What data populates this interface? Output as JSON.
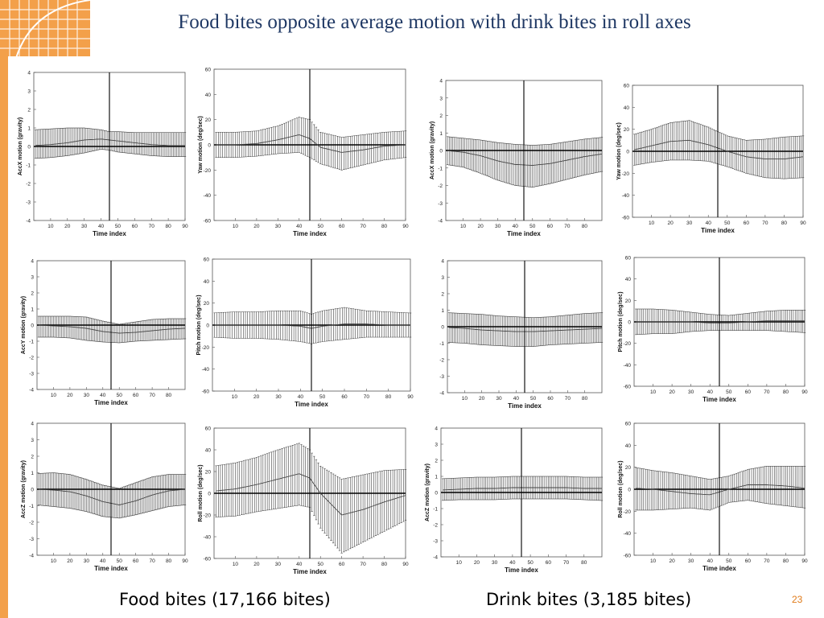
{
  "slide": {
    "title": "Food bites opposite average motion with drink bites in roll axes",
    "footer_left": "Food bites (17,166 bites)",
    "footer_right": "Drink bites (3,185 bites)",
    "page_number": "23",
    "accent_color": "#f3a04a",
    "title_color": "#1f3864"
  },
  "chart_data": [
    {
      "type": "line",
      "group": "Food bites",
      "xlabel": "Time index",
      "ylabel": "AccX motion (gravity)",
      "xlim": [
        0,
        90
      ],
      "ylim": [
        -4,
        4
      ],
      "yticks": [
        -4,
        -3,
        -2,
        -1,
        0,
        1,
        2,
        3,
        4
      ],
      "xticks": [
        10,
        20,
        30,
        40,
        50,
        60,
        70,
        80,
        90
      ],
      "marker_x": 45,
      "series": [
        {
          "x": [
            0,
            10,
            20,
            30,
            40,
            45,
            50,
            60,
            70,
            80,
            90
          ],
          "mean": [
            0.05,
            0.1,
            0.2,
            0.35,
            0.4,
            0.35,
            0.3,
            0.2,
            0.1,
            0.05,
            0.05
          ],
          "upper": [
            0.9,
            0.95,
            1.0,
            1.0,
            0.9,
            0.8,
            0.8,
            0.75,
            0.75,
            0.75,
            0.75
          ],
          "lower": [
            -0.65,
            -0.6,
            -0.5,
            -0.35,
            -0.15,
            -0.2,
            -0.3,
            -0.4,
            -0.5,
            -0.55,
            -0.55
          ]
        }
      ]
    },
    {
      "type": "line",
      "group": "Food bites",
      "xlabel": "Time index",
      "ylabel": "Yaw motion (deg/sec)",
      "xlim": [
        0,
        90
      ],
      "ylim": [
        -60,
        60
      ],
      "yticks": [
        -60,
        -40,
        -20,
        0,
        20,
        40,
        60
      ],
      "xticks": [
        10,
        20,
        30,
        40,
        50,
        60,
        70,
        80,
        90
      ],
      "marker_x": 45,
      "series": [
        {
          "x": [
            0,
            10,
            20,
            30,
            40,
            45,
            50,
            60,
            70,
            80,
            90
          ],
          "mean": [
            0,
            0,
            1,
            4,
            8,
            5,
            -2,
            -6,
            -4,
            -1,
            0
          ],
          "upper": [
            10,
            10,
            11,
            15,
            22,
            20,
            10,
            6,
            8,
            10,
            11
          ],
          "lower": [
            -10,
            -10,
            -9,
            -7,
            -6,
            -10,
            -15,
            -20,
            -16,
            -12,
            -10
          ]
        }
      ]
    },
    {
      "type": "line",
      "group": "Drink bites",
      "xlabel": "Time index",
      "ylabel": "AccX motion (gravity)",
      "xlim": [
        0,
        90
      ],
      "ylim": [
        -4,
        4
      ],
      "yticks": [
        -4,
        -3,
        -2,
        -1,
        0,
        1,
        2,
        3,
        4
      ],
      "xticks": [
        10,
        20,
        30,
        40,
        50,
        60,
        70,
        80
      ],
      "marker_x": 45,
      "series": [
        {
          "x": [
            0,
            10,
            20,
            30,
            40,
            50,
            60,
            70,
            80,
            90
          ],
          "mean": [
            0,
            -0.1,
            -0.3,
            -0.6,
            -0.8,
            -0.85,
            -0.75,
            -0.55,
            -0.35,
            -0.2
          ],
          "upper": [
            0.8,
            0.7,
            0.6,
            0.45,
            0.35,
            0.3,
            0.35,
            0.5,
            0.65,
            0.75
          ],
          "lower": [
            -0.8,
            -0.95,
            -1.3,
            -1.7,
            -2.0,
            -2.1,
            -1.9,
            -1.65,
            -1.4,
            -1.2
          ]
        }
      ]
    },
    {
      "type": "line",
      "group": "Drink bites",
      "xlabel": "Time index",
      "ylabel": "Yaw motion (deg/sec)",
      "xlim": [
        0,
        90
      ],
      "ylim": [
        -60,
        60
      ],
      "yticks": [
        -60,
        -40,
        -20,
        0,
        20,
        40,
        60
      ],
      "xticks": [
        10,
        20,
        30,
        40,
        50,
        60,
        70,
        80,
        90
      ],
      "marker_x": 45,
      "series": [
        {
          "x": [
            0,
            10,
            20,
            30,
            40,
            50,
            60,
            70,
            80,
            90
          ],
          "mean": [
            1,
            5,
            9,
            10,
            6,
            0,
            -5,
            -7,
            -7,
            -5
          ],
          "upper": [
            15,
            20,
            26,
            28,
            22,
            14,
            10,
            11,
            13,
            14
          ],
          "lower": [
            -13,
            -10,
            -8,
            -8,
            -9,
            -14,
            -20,
            -24,
            -25,
            -24
          ]
        }
      ]
    },
    {
      "type": "line",
      "group": "Food bites",
      "xlabel": "Time index",
      "ylabel": "AccY motion (gravity)",
      "xlim": [
        0,
        90
      ],
      "ylim": [
        -4,
        4
      ],
      "yticks": [
        -4,
        -3,
        -2,
        -1,
        0,
        1,
        2,
        3,
        4
      ],
      "xticks": [
        10,
        20,
        30,
        40,
        50,
        60,
        70,
        80
      ],
      "marker_x": 45,
      "series": [
        {
          "x": [
            0,
            10,
            20,
            30,
            40,
            50,
            60,
            70,
            80,
            90
          ],
          "mean": [
            0,
            -0.05,
            -0.1,
            -0.2,
            -0.4,
            -0.5,
            -0.45,
            -0.35,
            -0.25,
            -0.2
          ],
          "upper": [
            0.55,
            0.55,
            0.55,
            0.5,
            0.25,
            0.05,
            0.2,
            0.35,
            0.4,
            0.4
          ],
          "lower": [
            -0.75,
            -0.75,
            -0.8,
            -0.95,
            -1.05,
            -1.1,
            -1.0,
            -0.95,
            -0.9,
            -0.85
          ]
        }
      ]
    },
    {
      "type": "line",
      "group": "Food bites",
      "xlabel": "Time index",
      "ylabel": "Pitch motion (deg/sec)",
      "xlim": [
        0,
        90
      ],
      "ylim": [
        -60,
        60
      ],
      "yticks": [
        -60,
        -40,
        -20,
        0,
        20,
        40,
        60
      ],
      "xticks": [
        10,
        20,
        30,
        40,
        50,
        60,
        70,
        80,
        90
      ],
      "marker_x": 45,
      "series": [
        {
          "x": [
            0,
            10,
            20,
            30,
            40,
            45,
            50,
            60,
            70,
            80,
            90
          ],
          "mean": [
            0,
            0,
            0,
            0,
            -1,
            -3,
            -1,
            1,
            1,
            0,
            0
          ],
          "upper": [
            11,
            12,
            12,
            13,
            13,
            10,
            13,
            16,
            13,
            12,
            11
          ],
          "lower": [
            -11,
            -12,
            -12,
            -13,
            -15,
            -17,
            -15,
            -13,
            -11,
            -11,
            -11
          ]
        }
      ]
    },
    {
      "type": "line",
      "group": "Drink bites",
      "xlabel": "Time index",
      "ylabel": "",
      "xlim": [
        0,
        90
      ],
      "ylim": [
        -4,
        4
      ],
      "yticks": [
        -4,
        -3,
        -2,
        -1,
        0,
        1,
        2,
        3,
        4
      ],
      "xticks": [
        10,
        20,
        30,
        40,
        50,
        60,
        70,
        80
      ],
      "marker_x": 45,
      "series": [
        {
          "x": [
            0,
            10,
            20,
            30,
            40,
            50,
            60,
            70,
            80,
            90
          ],
          "mean": [
            -0.05,
            -0.1,
            -0.2,
            -0.25,
            -0.3,
            -0.3,
            -0.25,
            -0.2,
            -0.15,
            -0.1
          ],
          "upper": [
            0.85,
            0.8,
            0.75,
            0.65,
            0.6,
            0.55,
            0.6,
            0.7,
            0.8,
            0.85
          ],
          "lower": [
            -0.95,
            -1.0,
            -1.1,
            -1.15,
            -1.2,
            -1.2,
            -1.1,
            -1.05,
            -1.0,
            -0.95
          ]
        }
      ]
    },
    {
      "type": "line",
      "group": "Drink bites",
      "xlabel": "Time index",
      "ylabel": "Pitch motion (deg/sec)",
      "xlim": [
        0,
        90
      ],
      "ylim": [
        -60,
        60
      ],
      "yticks": [
        -60,
        -40,
        -20,
        0,
        20,
        40,
        60
      ],
      "xticks": [
        10,
        20,
        30,
        40,
        50,
        60,
        70,
        80,
        90
      ],
      "marker_x": 45,
      "series": [
        {
          "x": [
            0,
            10,
            20,
            30,
            40,
            50,
            60,
            70,
            80,
            90
          ],
          "mean": [
            0,
            0,
            0,
            0,
            -1,
            -1,
            0,
            1,
            1,
            1
          ],
          "upper": [
            12,
            12,
            11,
            9,
            7,
            6,
            8,
            10,
            11,
            11
          ],
          "lower": [
            -12,
            -11,
            -11,
            -9,
            -8,
            -8,
            -8,
            -8,
            -9,
            -10
          ]
        }
      ]
    },
    {
      "type": "line",
      "group": "Food bites",
      "xlabel": "Time index",
      "ylabel": "AccZ motion (gravity)",
      "xlim": [
        0,
        90
      ],
      "ylim": [
        -4,
        4
      ],
      "yticks": [
        -4,
        -3,
        -2,
        -1,
        0,
        1,
        2,
        3,
        4
      ],
      "xticks": [
        10,
        20,
        30,
        40,
        50,
        60,
        70,
        80,
        90
      ],
      "marker_x": 45,
      "series": [
        {
          "x": [
            0,
            10,
            20,
            30,
            40,
            50,
            60,
            70,
            80,
            90
          ],
          "mean": [
            0,
            -0.05,
            -0.15,
            -0.4,
            -0.75,
            -0.95,
            -0.7,
            -0.35,
            -0.1,
            0
          ],
          "upper": [
            0.95,
            1.0,
            0.9,
            0.6,
            0.25,
            0.05,
            0.4,
            0.75,
            0.9,
            0.9
          ],
          "lower": [
            -0.95,
            -1.05,
            -1.15,
            -1.35,
            -1.65,
            -1.75,
            -1.55,
            -1.3,
            -1.05,
            -0.95
          ]
        }
      ]
    },
    {
      "type": "line",
      "group": "Food bites",
      "xlabel": "Time index",
      "ylabel": "Roll motion (deg/sec)",
      "xlim": [
        0,
        90
      ],
      "ylim": [
        -60,
        60
      ],
      "yticks": [
        -60,
        -40,
        -20,
        0,
        20,
        40,
        60
      ],
      "xticks": [
        10,
        20,
        30,
        40,
        50,
        60,
        70,
        80,
        90
      ],
      "marker_x": 45,
      "series": [
        {
          "x": [
            0,
            10,
            20,
            30,
            40,
            45,
            50,
            60,
            70,
            80,
            90
          ],
          "mean": [
            2,
            4,
            8,
            13,
            18,
            14,
            0,
            -20,
            -15,
            -8,
            -2
          ],
          "upper": [
            25,
            28,
            33,
            40,
            46,
            40,
            25,
            13,
            17,
            21,
            22
          ],
          "lower": [
            -22,
            -21,
            -17,
            -14,
            -11,
            -13,
            -32,
            -55,
            -45,
            -35,
            -25
          ]
        }
      ]
    },
    {
      "type": "line",
      "group": "Drink bites",
      "xlabel": "Time index",
      "ylabel": "AccZ motion (gravity)",
      "xlim": [
        0,
        90
      ],
      "ylim": [
        -4,
        4
      ],
      "yticks": [
        -4,
        -3,
        -2,
        -1,
        0,
        1,
        2,
        3,
        4
      ],
      "xticks": [
        10,
        20,
        30,
        40,
        50,
        60,
        70,
        80
      ],
      "marker_x": 45,
      "series": [
        {
          "x": [
            0,
            10,
            20,
            30,
            40,
            50,
            60,
            70,
            80,
            90
          ],
          "mean": [
            0.15,
            0.2,
            0.25,
            0.25,
            0.3,
            0.3,
            0.3,
            0.3,
            0.25,
            0.25
          ],
          "upper": [
            0.85,
            0.9,
            0.95,
            0.95,
            1.0,
            1.0,
            1.0,
            1.0,
            0.95,
            0.95
          ],
          "lower": [
            -0.5,
            -0.45,
            -0.45,
            -0.45,
            -0.4,
            -0.4,
            -0.4,
            -0.4,
            -0.45,
            -0.5
          ]
        }
      ]
    },
    {
      "type": "line",
      "group": "Drink bites",
      "xlabel": "Time index",
      "ylabel": "Roll motion (deg/sec)",
      "xlim": [
        0,
        90
      ],
      "ylim": [
        -60,
        60
      ],
      "yticks": [
        -60,
        -40,
        -20,
        0,
        20,
        40,
        60
      ],
      "xticks": [
        10,
        20,
        30,
        40,
        50,
        60,
        70,
        80,
        90
      ],
      "marker_x": 45,
      "series": [
        {
          "x": [
            0,
            10,
            20,
            30,
            40,
            50,
            60,
            70,
            80,
            90
          ],
          "mean": [
            1,
            0,
            -2,
            -4,
            -5,
            0,
            4,
            4,
            3,
            1
          ],
          "upper": [
            20,
            17,
            15,
            12,
            9,
            12,
            18,
            21,
            21,
            21
          ],
          "lower": [
            -19,
            -19,
            -18,
            -17,
            -19,
            -12,
            -10,
            -13,
            -15,
            -17
          ]
        }
      ]
    }
  ]
}
